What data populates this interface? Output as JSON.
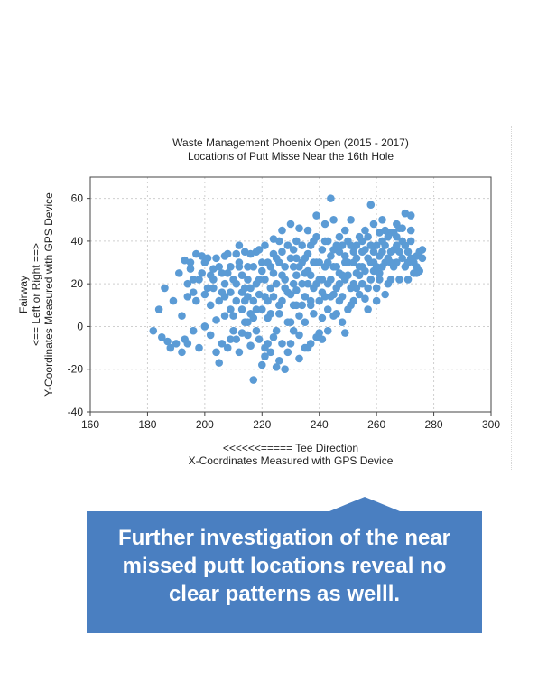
{
  "chart_data": {
    "type": "scatter",
    "title": "Waste Management Phoenix Open (2015 - 2017)",
    "subtitle": "Locations of Putt Misse Near the 16th Hole",
    "xlabel_line1": "<<<<<<===== Tee Direction",
    "xlabel_line2": "X-Coordinates Measured with GPS Device",
    "ylabel_line1": "Fairway",
    "ylabel_line2": "<== Left or Right ==>",
    "ylabel_line3": "Y-Coordinates Measured with GPS Device",
    "xlim": [
      160,
      300
    ],
    "ylim": [
      -40,
      70
    ],
    "xticks": [
      160,
      180,
      200,
      220,
      240,
      260,
      280,
      300
    ],
    "yticks": [
      -40,
      -20,
      0,
      20,
      40,
      60
    ],
    "grid": true,
    "marker_color": "#5b9bd5",
    "points": [
      [
        182,
        -2
      ],
      [
        184,
        8
      ],
      [
        185,
        -5
      ],
      [
        186,
        18
      ],
      [
        187,
        -7
      ],
      [
        188,
        -10
      ],
      [
        190,
        -8
      ],
      [
        192,
        -12
      ],
      [
        193,
        -6
      ],
      [
        191,
        25
      ],
      [
        193,
        31
      ],
      [
        194,
        20
      ],
      [
        195,
        27
      ],
      [
        196,
        16
      ],
      [
        197,
        12
      ],
      [
        198,
        22
      ],
      [
        199,
        33
      ],
      [
        200,
        30
      ],
      [
        201,
        18
      ],
      [
        202,
        10
      ],
      [
        203,
        27
      ],
      [
        204,
        3
      ],
      [
        205,
        -17
      ],
      [
        206,
        -8
      ],
      [
        207,
        14
      ],
      [
        208,
        25
      ],
      [
        209,
        -6
      ],
      [
        210,
        5
      ],
      [
        211,
        20
      ],
      [
        212,
        30
      ],
      [
        213,
        -3
      ],
      [
        214,
        12
      ],
      [
        215,
        22
      ],
      [
        216,
        -9
      ],
      [
        217,
        -25
      ],
      [
        218,
        8
      ],
      [
        219,
        15
      ],
      [
        220,
        30
      ],
      [
        221,
        -14
      ],
      [
        222,
        4
      ],
      [
        223,
        18
      ],
      [
        224,
        25
      ],
      [
        225,
        -19
      ],
      [
        226,
        10
      ],
      [
        227,
        35
      ],
      [
        228,
        22
      ],
      [
        229,
        -12
      ],
      [
        230,
        15
      ],
      [
        231,
        28
      ],
      [
        232,
        40
      ],
      [
        233,
        5
      ],
      [
        234,
        20
      ],
      [
        235,
        -10
      ],
      [
        236,
        45
      ],
      [
        237,
        12
      ],
      [
        238,
        30
      ],
      [
        239,
        -5
      ],
      [
        240,
        22
      ],
      [
        241,
        36
      ],
      [
        242,
        48
      ],
      [
        243,
        8
      ],
      [
        244,
        60
      ],
      [
        245,
        28
      ],
      [
        246,
        18
      ],
      [
        247,
        42
      ],
      [
        248,
        2
      ],
      [
        249,
        33
      ],
      [
        250,
        24
      ],
      [
        251,
        50
      ],
      [
        252,
        12
      ],
      [
        253,
        38
      ],
      [
        254,
        28
      ],
      [
        255,
        20
      ],
      [
        256,
        45
      ],
      [
        257,
        8
      ],
      [
        258,
        57
      ],
      [
        259,
        30
      ],
      [
        260,
        38
      ],
      [
        261,
        25
      ],
      [
        262,
        50
      ],
      [
        263,
        15
      ],
      [
        264,
        42
      ],
      [
        265,
        35
      ],
      [
        266,
        28
      ],
      [
        267,
        48
      ],
      [
        268,
        22
      ],
      [
        269,
        40
      ],
      [
        270,
        53
      ],
      [
        271,
        30
      ],
      [
        272,
        45
      ],
      [
        273,
        25
      ],
      [
        274,
        33
      ],
      [
        275,
        26
      ],
      [
        276,
        36
      ],
      [
        207,
        33
      ],
      [
        212,
        28
      ],
      [
        218,
        35
      ],
      [
        224,
        41
      ],
      [
        230,
        48
      ],
      [
        233,
        -15
      ],
      [
        237,
        -8
      ],
      [
        241,
        4
      ],
      [
        245,
        15
      ],
      [
        249,
        -3
      ],
      [
        253,
        18
      ],
      [
        257,
        32
      ],
      [
        261,
        44
      ],
      [
        265,
        22
      ],
      [
        203,
        18
      ],
      [
        206,
        25
      ],
      [
        209,
        8
      ],
      [
        215,
        -4
      ],
      [
        221,
        22
      ],
      [
        227,
        12
      ],
      [
        231,
        -2
      ],
      [
        235,
        32
      ],
      [
        239,
        42
      ],
      [
        243,
        -2
      ],
      [
        247,
        25
      ],
      [
        251,
        10
      ],
      [
        255,
        35
      ],
      [
        259,
        48
      ],
      [
        263,
        30
      ],
      [
        267,
        42
      ],
      [
        271,
        35
      ],
      [
        272,
        52
      ],
      [
        226,
        30
      ],
      [
        228,
        -20
      ],
      [
        232,
        17
      ],
      [
        236,
        26
      ],
      [
        240,
        12
      ],
      [
        244,
        33
      ],
      [
        248,
        38
      ],
      [
        252,
        20
      ],
      [
        256,
        13
      ],
      [
        214,
        35
      ],
      [
        216,
        18
      ],
      [
        220,
        8
      ],
      [
        222,
        -8
      ],
      [
        224,
        14
      ],
      [
        226,
        -16
      ],
      [
        230,
        2
      ],
      [
        232,
        24
      ],
      [
        234,
        38
      ],
      [
        236,
        -10
      ],
      [
        238,
        18
      ],
      [
        242,
        28
      ],
      [
        246,
        6
      ],
      [
        250,
        30
      ],
      [
        254,
        42
      ],
      [
        258,
        22
      ],
      [
        260,
        18
      ],
      [
        262,
        35
      ],
      [
        196,
        -2
      ],
      [
        198,
        -10
      ],
      [
        200,
        0
      ],
      [
        202,
        -4
      ],
      [
        204,
        -12
      ],
      [
        208,
        -10
      ],
      [
        210,
        -2
      ],
      [
        212,
        -12
      ],
      [
        214,
        2
      ],
      [
        216,
        6
      ],
      [
        218,
        -2
      ],
      [
        220,
        -18
      ],
      [
        222,
        12
      ],
      [
        224,
        -5
      ],
      [
        226,
        6
      ],
      [
        228,
        18
      ],
      [
        230,
        -8
      ],
      [
        232,
        32
      ],
      [
        234,
        10
      ],
      [
        236,
        20
      ],
      [
        238,
        6
      ],
      [
        240,
        -3
      ],
      [
        242,
        14
      ],
      [
        244,
        22
      ],
      [
        246,
        38
      ],
      [
        248,
        14
      ],
      [
        250,
        8
      ],
      [
        252,
        35
      ],
      [
        254,
        15
      ],
      [
        256,
        26
      ],
      [
        258,
        38
      ],
      [
        260,
        12
      ],
      [
        262,
        28
      ],
      [
        264,
        20
      ],
      [
        266,
        44
      ],
      [
        268,
        35
      ],
      [
        270,
        28
      ],
      [
        272,
        40
      ],
      [
        274,
        25
      ],
      [
        195,
        30
      ],
      [
        197,
        34
      ],
      [
        199,
        25
      ],
      [
        201,
        32
      ],
      [
        203,
        22
      ],
      [
        205,
        28
      ],
      [
        207,
        20
      ],
      [
        209,
        16
      ],
      [
        211,
        34
      ],
      [
        213,
        24
      ],
      [
        215,
        14
      ],
      [
        217,
        28
      ],
      [
        219,
        22
      ],
      [
        221,
        38
      ],
      [
        223,
        28
      ],
      [
        225,
        20
      ],
      [
        227,
        45
      ],
      [
        229,
        38
      ],
      [
        231,
        20
      ],
      [
        233,
        46
      ],
      [
        235,
        25
      ],
      [
        237,
        38
      ],
      [
        239,
        52
      ],
      [
        241,
        22
      ],
      [
        243,
        40
      ],
      [
        245,
        50
      ],
      [
        247,
        35
      ],
      [
        249,
        45
      ],
      [
        251,
        38
      ],
      [
        253,
        25
      ],
      [
        255,
        40
      ],
      [
        257,
        18
      ],
      [
        259,
        26
      ],
      [
        261,
        33
      ],
      [
        263,
        38
      ],
      [
        265,
        44
      ],
      [
        267,
        30
      ],
      [
        269,
        46
      ],
      [
        271,
        22
      ],
      [
        273,
        30
      ],
      [
        275,
        35
      ],
      [
        221,
        -10
      ],
      [
        223,
        -12
      ],
      [
        225,
        -2
      ],
      [
        227,
        -8
      ],
      [
        229,
        2
      ],
      [
        231,
        10
      ],
      [
        233,
        -4
      ],
      [
        235,
        2
      ],
      [
        237,
        10
      ],
      [
        239,
        20
      ],
      [
        241,
        -6
      ],
      [
        243,
        30
      ],
      [
        245,
        5
      ],
      [
        247,
        12
      ],
      [
        249,
        22
      ],
      [
        211,
        -6
      ],
      [
        213,
        8
      ],
      [
        215,
        2
      ],
      [
        217,
        12
      ],
      [
        219,
        -6
      ],
      [
        205,
        12
      ],
      [
        207,
        5
      ],
      [
        209,
        28
      ],
      [
        211,
        12
      ],
      [
        213,
        16
      ],
      [
        215,
        28
      ],
      [
        217,
        4
      ],
      [
        219,
        36
      ],
      [
        221,
        14
      ],
      [
        223,
        6
      ],
      [
        225,
        32
      ],
      [
        227,
        24
      ],
      [
        229,
        16
      ],
      [
        231,
        36
      ],
      [
        233,
        28
      ],
      [
        235,
        14
      ],
      [
        237,
        24
      ],
      [
        239,
        30
      ],
      [
        241,
        16
      ],
      [
        243,
        20
      ],
      [
        245,
        36
      ],
      [
        247,
        20
      ],
      [
        249,
        30
      ],
      [
        251,
        18
      ],
      [
        253,
        32
      ],
      [
        255,
        28
      ],
      [
        257,
        42
      ],
      [
        259,
        35
      ],
      [
        261,
        22
      ],
      [
        263,
        45
      ],
      [
        265,
        30
      ],
      [
        267,
        38
      ],
      [
        269,
        32
      ],
      [
        194,
        -8
      ],
      [
        189,
        12
      ],
      [
        192,
        5
      ],
      [
        194,
        14
      ],
      [
        196,
        22
      ],
      [
        200,
        15
      ],
      [
        202,
        24
      ],
      [
        204,
        32
      ],
      [
        206,
        16
      ],
      [
        208,
        34
      ],
      [
        210,
        22
      ],
      [
        212,
        38
      ],
      [
        214,
        18
      ],
      [
        216,
        34
      ],
      [
        218,
        20
      ],
      [
        220,
        26
      ],
      [
        222,
        30
      ],
      [
        224,
        34
      ],
      [
        226,
        40
      ],
      [
        228,
        28
      ],
      [
        230,
        32
      ],
      [
        232,
        10
      ],
      [
        234,
        30
      ],
      [
        236,
        34
      ],
      [
        238,
        40
      ],
      [
        240,
        30
      ],
      [
        242,
        40
      ],
      [
        244,
        14
      ],
      [
        246,
        28
      ],
      [
        248,
        24
      ],
      [
        250,
        40
      ],
      [
        252,
        30
      ],
      [
        254,
        24
      ],
      [
        256,
        36
      ],
      [
        258,
        30
      ],
      [
        260,
        28
      ],
      [
        262,
        40
      ],
      [
        264,
        32
      ],
      [
        266,
        36
      ],
      [
        268,
        46
      ],
      [
        270,
        38
      ],
      [
        272,
        32
      ],
      [
        274,
        28
      ],
      [
        276,
        32
      ]
    ]
  },
  "callout": {
    "text_line1": "Further investigation of the near",
    "text_line2": "missed putt locations reveal no",
    "text_line3": "clear patterns as welll.",
    "fill_color": "#4a7fc1"
  }
}
